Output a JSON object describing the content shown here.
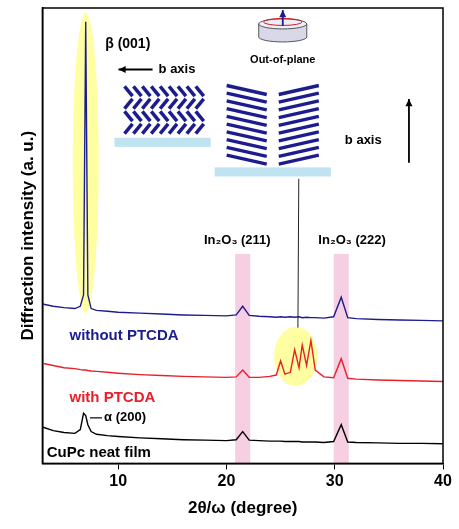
{
  "chart_data": {
    "type": "line",
    "x_label": "2θ/ω (degree)",
    "y_label": "Diffraction intensity (a. u.)",
    "x": [
      3,
      4,
      5,
      6,
      6.5,
      6.8,
      7.0,
      7.2,
      7.5,
      8,
      9,
      10,
      12,
      14,
      16,
      18,
      20,
      20.9,
      21.5,
      22.1,
      23,
      24,
      24.6,
      25.0,
      25.4,
      25.9,
      26.3,
      26.7,
      27.0,
      27.4,
      27.8,
      28.2,
      29,
      29.9,
      30.6,
      31.2,
      32,
      34,
      36,
      38,
      40
    ],
    "series": [
      {
        "name": "without PTCDA",
        "color": "#1c1c8f",
        "values": [
          35,
          34.5,
          34.2,
          34,
          34.5,
          37,
          97,
          37,
          34,
          33.6,
          33.4,
          33.2,
          33,
          32.8,
          32.6,
          32.5,
          32.4,
          32.6,
          34.5,
          32.5,
          32.3,
          32.2,
          32.1,
          32.2,
          32.1,
          32.2,
          32.1,
          32.2,
          32.0,
          32.1,
          32.0,
          32.0,
          31.9,
          32.2,
          36.5,
          32.0,
          31.8,
          31.6,
          31.5,
          31.4,
          31.3
        ]
      },
      {
        "name": "with PTCDA",
        "color": "#e8202a",
        "values": [
          22,
          21.5,
          21,
          20.8,
          20.6,
          20.5,
          20.5,
          20.4,
          20.3,
          20.2,
          20,
          19.8,
          19.5,
          19.3,
          19.1,
          19.0,
          18.9,
          19.0,
          20.5,
          18.9,
          18.9,
          19.1,
          19.4,
          22.5,
          19.6,
          20.0,
          25.0,
          21,
          26.0,
          21.5,
          27.0,
          20.5,
          19.0,
          18.8,
          23.0,
          18.7,
          18.5,
          18.3,
          18.2,
          18.1,
          18.0
        ]
      },
      {
        "name": "CuPc neat film",
        "color": "#000000",
        "values": [
          8,
          7.2,
          6.8,
          6.6,
          7.4,
          11,
          10.5,
          8.5,
          7,
          6.4,
          6.1,
          5.9,
          5.6,
          5.4,
          5.2,
          5.1,
          5.0,
          5.2,
          7.0,
          5.1,
          5.0,
          4.9,
          4.9,
          4.9,
          4.8,
          4.8,
          4.8,
          4.8,
          4.7,
          4.7,
          4.7,
          4.7,
          4.6,
          4.8,
          8.5,
          4.7,
          4.6,
          4.5,
          4.4,
          4.4,
          4.3
        ]
      }
    ],
    "xlim": [
      3,
      40
    ],
    "xticks": [
      10,
      20,
      30,
      40
    ],
    "ylim": [
      0,
      100
    ],
    "tick_labels": "x",
    "grid": false,
    "marker": "none",
    "line_style": "solid",
    "annotations": [
      "β (001)",
      "α (200)",
      "In₂O₃ (211)",
      "In₂O₃ (222)",
      "b axis",
      "b axis",
      "Out-of-plane"
    ]
  }
}
